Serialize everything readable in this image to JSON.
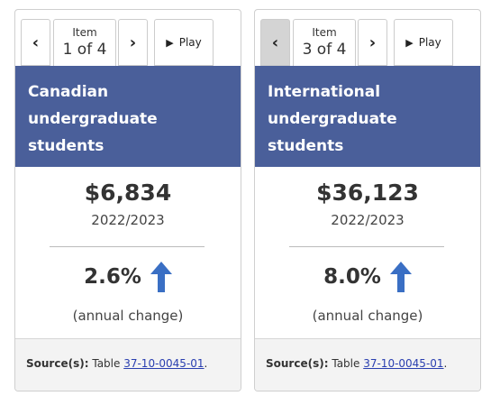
{
  "cards": [
    {
      "nav": {
        "prev_icon": "chevron-left-icon",
        "item_label": "Item",
        "item_count": "1 of 4",
        "next_icon": "chevron-right-icon",
        "play_label": "Play",
        "prev_disabled": false
      },
      "title_lines": [
        "Canadian",
        "undergraduate",
        "students"
      ],
      "value": "$6,834",
      "period": "2022/2023",
      "change": "2.6%",
      "change_label": "(annual change)",
      "source_label": "Source(s):",
      "source_text": "Table",
      "source_link": "37-10-0045-01",
      "source_end": "."
    },
    {
      "nav": {
        "prev_icon": "chevron-left-icon",
        "item_label": "Item",
        "item_count": "3 of 4",
        "next_icon": "chevron-right-icon",
        "play_label": "Play",
        "prev_disabled": true
      },
      "title_lines": [
        "International",
        "undergraduate",
        "students"
      ],
      "value": "$36,123",
      "period": "2022/2023",
      "change": "8.0%",
      "change_label": "(annual change)",
      "source_label": "Source(s):",
      "source_text": "Table",
      "source_link": "37-10-0045-01",
      "source_end": "."
    }
  ],
  "colors": {
    "header_bg": "#4a5f9a",
    "arrow": "#3a6fc4",
    "link": "#2a3fb0"
  }
}
